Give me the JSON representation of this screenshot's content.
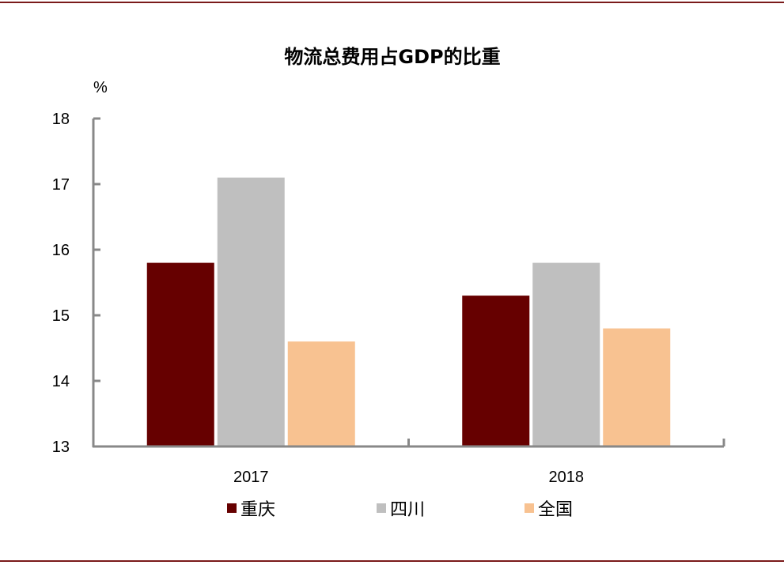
{
  "chart_data": {
    "type": "bar",
    "title": "物流总费用占GDP的比重",
    "ylabel": "%",
    "xlabel": "",
    "ylim": [
      13,
      18
    ],
    "yticks": [
      13,
      14,
      15,
      16,
      17,
      18
    ],
    "categories": [
      "2017",
      "2018"
    ],
    "series": [
      {
        "name": "重庆",
        "color": "#660000",
        "values": [
          15.8,
          15.3
        ]
      },
      {
        "name": "四川",
        "color": "#bfbfbf",
        "values": [
          17.1,
          15.8
        ]
      },
      {
        "name": "全国",
        "color": "#f8c291",
        "values": [
          14.6,
          14.8
        ]
      }
    ],
    "legend_position": "bottom",
    "grid": false
  },
  "colors": {
    "rule": "#7a1a1a",
    "axis": "#888888"
  }
}
